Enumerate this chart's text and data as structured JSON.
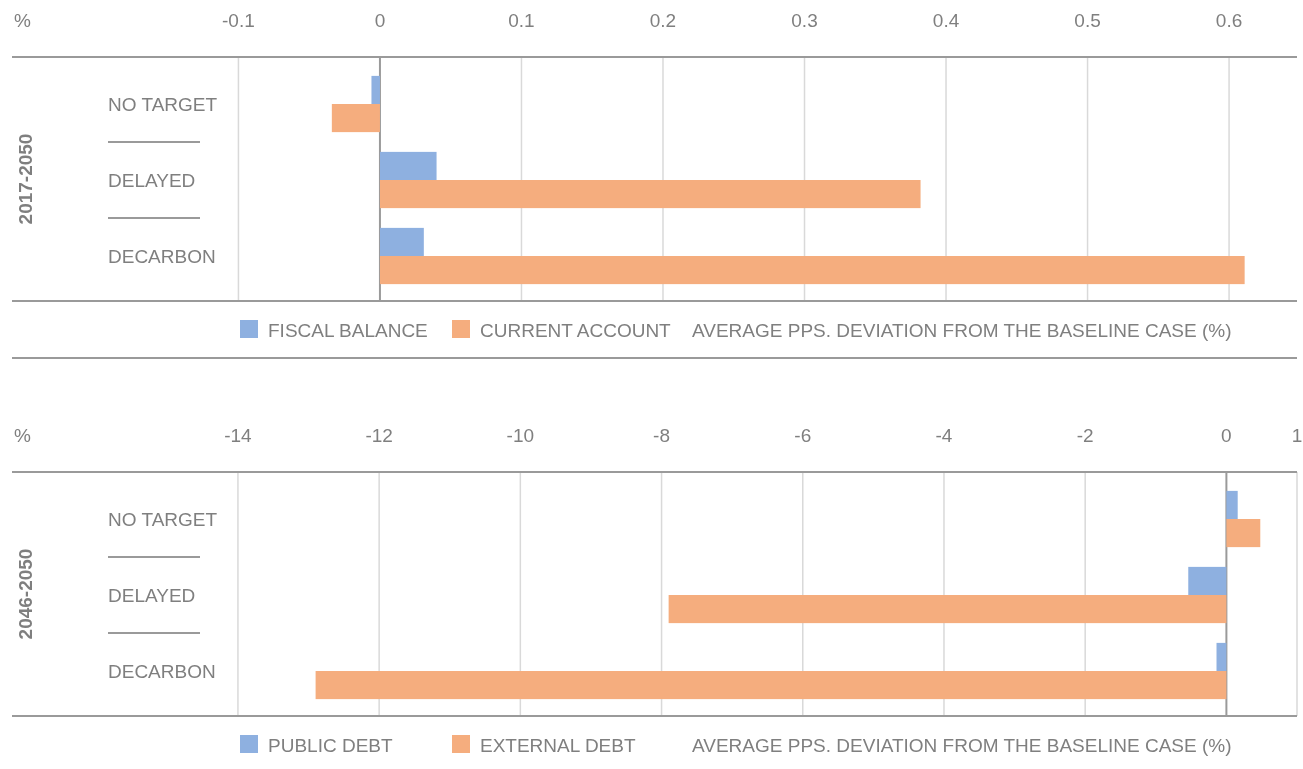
{
  "chart_data": [
    {
      "type": "bar",
      "orientation": "horizontal",
      "ylabel": "2017-2050",
      "xlabel": "AVERAGE PPS. DEVIATION FROM THE BASELINE CASE (%)",
      "annotations": [
        "%"
      ],
      "categories": [
        "NO TARGET",
        "DELAYED",
        "DECARBON"
      ],
      "series": [
        {
          "name": "FISCAL BALANCE",
          "color": "#8eb0e0",
          "values": [
            -0.006,
            0.04,
            0.031
          ]
        },
        {
          "name": "CURRENT ACCOUNT",
          "color": "#f5ad7e",
          "values": [
            -0.034,
            0.382,
            0.611
          ]
        }
      ],
      "xlim": [
        -0.26,
        0.648
      ],
      "xticks": [
        -0.1,
        0,
        0.1,
        0.2,
        0.3,
        0.4,
        0.5,
        0.6
      ],
      "grid": "x",
      "legend": "bottom"
    },
    {
      "type": "bar",
      "orientation": "horizontal",
      "ylabel": "2046-2050",
      "xlabel": "AVERAGE PPS. DEVIATION FROM THE BASELINE CASE (%)",
      "annotations": [
        "%"
      ],
      "categories": [
        "NO TARGET",
        "DELAYED",
        "DECARBON"
      ],
      "series": [
        {
          "name": "PUBLIC DEBT",
          "color": "#8eb0e0",
          "values": [
            0.16,
            -0.54,
            -0.14
          ]
        },
        {
          "name": "EXTERNAL DEBT",
          "color": "#f5ad7e",
          "values": [
            0.48,
            -7.9,
            -12.9
          ]
        }
      ],
      "xlim": [
        -17.2,
        1
      ],
      "xticks": [
        -14,
        -12,
        -10,
        -8,
        -6,
        -4,
        -2,
        0,
        1
      ],
      "grid": "x",
      "legend": "bottom"
    }
  ]
}
